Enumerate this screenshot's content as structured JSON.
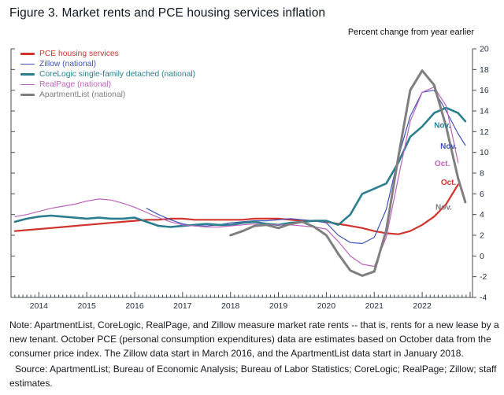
{
  "notes": {
    "note": "Note: ApartmentList, CoreLogic, RealPage, and Zillow measure market rate rents -- that is, rents for a new lease by a new tenant. October PCE (personal consumption expenditures) data are estimates based on October data from the consumer price index. The Zillow data start in March 2016, and the ApartmentList data start in January 2018.",
    "source": "Source: ApartmentList; Bureau of Economic Analysis; Bureau of Labor Statistics; CoreLogic; RealPage; Zillow; staff estimates."
  },
  "chart_data": {
    "type": "line",
    "title": "Figure 3. Market rents and PCE housing services inflation",
    "unit_label": "Percent change from year earlier",
    "xlabel": "",
    "ylabel": "Percent change from year earlier",
    "grid": false,
    "legend_position": "top-left",
    "x_range": [
      2013.42,
      2023.05
    ],
    "ylim": [
      -4,
      20
    ],
    "yticks": [
      -4,
      -2,
      0,
      2,
      4,
      6,
      8,
      10,
      12,
      14,
      16,
      18,
      20
    ],
    "xticks_years": [
      2014,
      2015,
      2016,
      2017,
      2018,
      2019,
      2020,
      2021,
      2022
    ],
    "x": [
      2013.5,
      2013.75,
      2014.0,
      2014.25,
      2014.5,
      2014.75,
      2015.0,
      2015.25,
      2015.5,
      2015.75,
      2016.0,
      2016.25,
      2016.5,
      2016.75,
      2017.0,
      2017.25,
      2017.5,
      2017.75,
      2018.0,
      2018.25,
      2018.5,
      2018.75,
      2019.0,
      2019.25,
      2019.5,
      2019.75,
      2020.0,
      2020.25,
      2020.5,
      2020.75,
      2021.0,
      2021.25,
      2021.5,
      2021.75,
      2022.0,
      2022.25,
      2022.5,
      2022.75,
      2022.9
    ],
    "series": [
      {
        "name": "pce",
        "label": "PCE housing services",
        "color": "#d0342c",
        "width": 2.2,
        "values": [
          2.4,
          2.5,
          2.6,
          2.7,
          2.8,
          2.9,
          3.0,
          3.1,
          3.2,
          3.3,
          3.4,
          3.5,
          3.5,
          3.6,
          3.6,
          3.5,
          3.5,
          3.5,
          3.5,
          3.5,
          3.6,
          3.6,
          3.6,
          3.5,
          3.4,
          3.4,
          3.3,
          3.1,
          2.9,
          2.7,
          2.4,
          2.2,
          2.1,
          2.4,
          3.0,
          3.8,
          5.0,
          6.9,
          null
        ]
      },
      {
        "name": "zillow",
        "label": "Zillow (national)",
        "color": "#4153b8",
        "width": 1.2,
        "values": [
          null,
          null,
          null,
          null,
          null,
          null,
          null,
          null,
          null,
          null,
          null,
          4.6,
          4.0,
          3.5,
          3.1,
          2.9,
          2.9,
          3.0,
          3.2,
          3.3,
          3.4,
          3.4,
          3.5,
          3.6,
          3.5,
          3.4,
          3.2,
          2.0,
          1.3,
          1.2,
          1.8,
          4.5,
          9.5,
          13.5,
          15.8,
          16.0,
          14.0,
          11.8,
          10.7
        ]
      },
      {
        "name": "corelogic",
        "label": "CoreLogic single-family detached (national)",
        "color": "#2a7e8e",
        "width": 2.6,
        "values": [
          3.3,
          3.6,
          3.8,
          3.9,
          3.8,
          3.7,
          3.6,
          3.7,
          3.6,
          3.6,
          3.7,
          3.3,
          2.9,
          2.8,
          2.9,
          3.0,
          3.1,
          3.0,
          3.0,
          3.2,
          3.3,
          3.1,
          3.0,
          3.2,
          3.3,
          3.4,
          3.4,
          3.0,
          4.0,
          6.0,
          6.5,
          7.0,
          9.0,
          11.5,
          12.5,
          13.8,
          14.3,
          13.8,
          13.0
        ]
      },
      {
        "name": "realpage",
        "label": "RealPage (national)",
        "color": "#bb64bb",
        "width": 1.2,
        "values": [
          3.8,
          4.0,
          4.3,
          4.6,
          4.8,
          5.0,
          5.3,
          5.5,
          5.4,
          5.1,
          4.7,
          4.2,
          3.7,
          3.3,
          3.0,
          2.9,
          2.8,
          2.8,
          2.9,
          3.0,
          3.1,
          3.0,
          3.0,
          3.0,
          2.9,
          2.8,
          2.6,
          1.4,
          0.0,
          -0.8,
          -1.0,
          1.8,
          7.5,
          13.0,
          15.8,
          16.3,
          14.5,
          9.0,
          null
        ]
      },
      {
        "name": "apartmentlist",
        "label": "ApartmentList (national)",
        "color": "#7f7f7f",
        "width": 3,
        "values": [
          null,
          null,
          null,
          null,
          null,
          null,
          null,
          null,
          null,
          null,
          null,
          null,
          null,
          null,
          null,
          null,
          null,
          null,
          2.0,
          2.4,
          2.9,
          3.0,
          2.7,
          3.1,
          3.3,
          2.8,
          2.0,
          0.2,
          -1.4,
          -1.9,
          -1.5,
          2.5,
          9.5,
          16.0,
          17.9,
          16.5,
          12.5,
          7.5,
          5.2
        ]
      }
    ],
    "end_labels": [
      {
        "text": "Nov.",
        "series": "corelogic",
        "x": 2022.42,
        "y": 12.6,
        "color": "#2a7e8e"
      },
      {
        "text": "Nov.",
        "series": "zillow",
        "x": 2022.55,
        "y": 10.6,
        "color": "#4153b8"
      },
      {
        "text": "Oct.",
        "series": "realpage",
        "x": 2022.42,
        "y": 8.9,
        "color": "#bb64bb"
      },
      {
        "text": "Oct.",
        "series": "pce",
        "x": 2022.55,
        "y": 7.1,
        "color": "#d0342c"
      },
      {
        "text": "Nov.",
        "series": "apartmentlist",
        "x": 2022.45,
        "y": 4.7,
        "color": "#7f7f7f"
      }
    ]
  }
}
